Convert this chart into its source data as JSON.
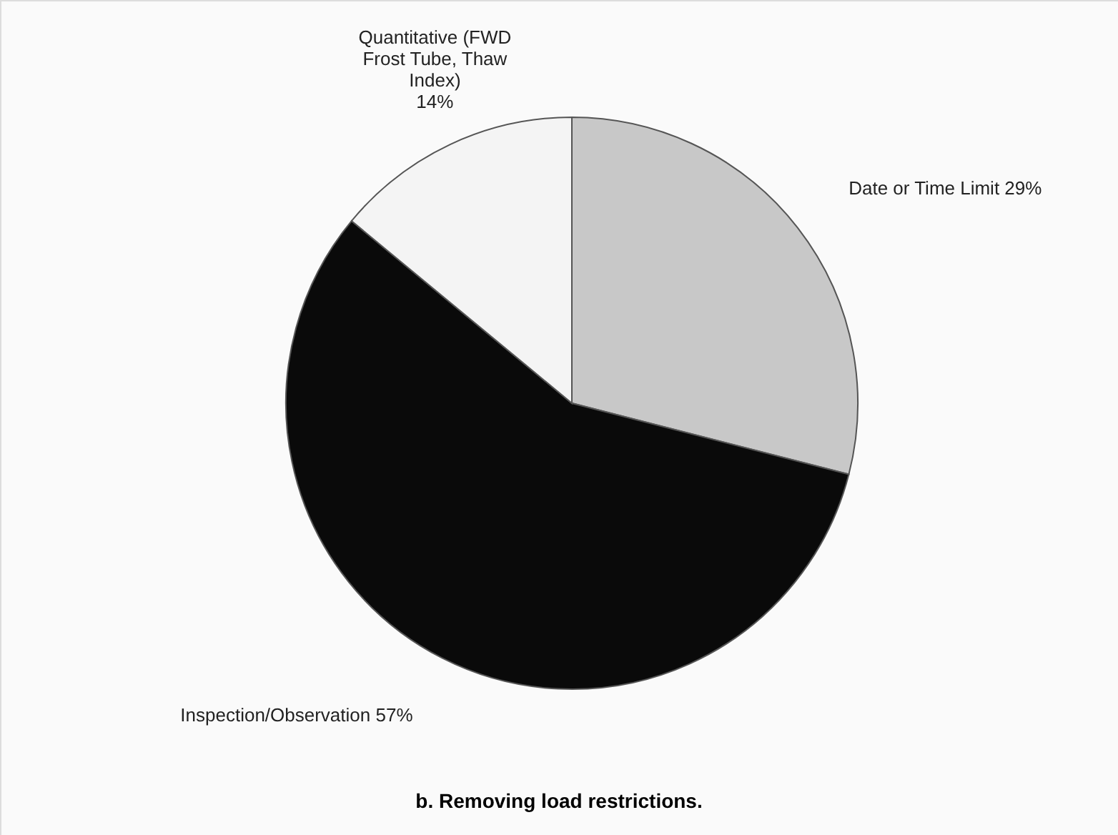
{
  "chart_data": {
    "type": "pie",
    "title": "b. Removing load restrictions.",
    "categories": [
      "Date or Time Limit",
      "Inspection/Observation",
      "Quantitative (FWD Frost Tube, Thaw Index)"
    ],
    "values": [
      29,
      57,
      14
    ],
    "colors": [
      "#c8c8c8",
      "#0a0a0a",
      "#f4f4f4"
    ],
    "value_labels": [
      "29%",
      "57%",
      "14%"
    ]
  }
}
